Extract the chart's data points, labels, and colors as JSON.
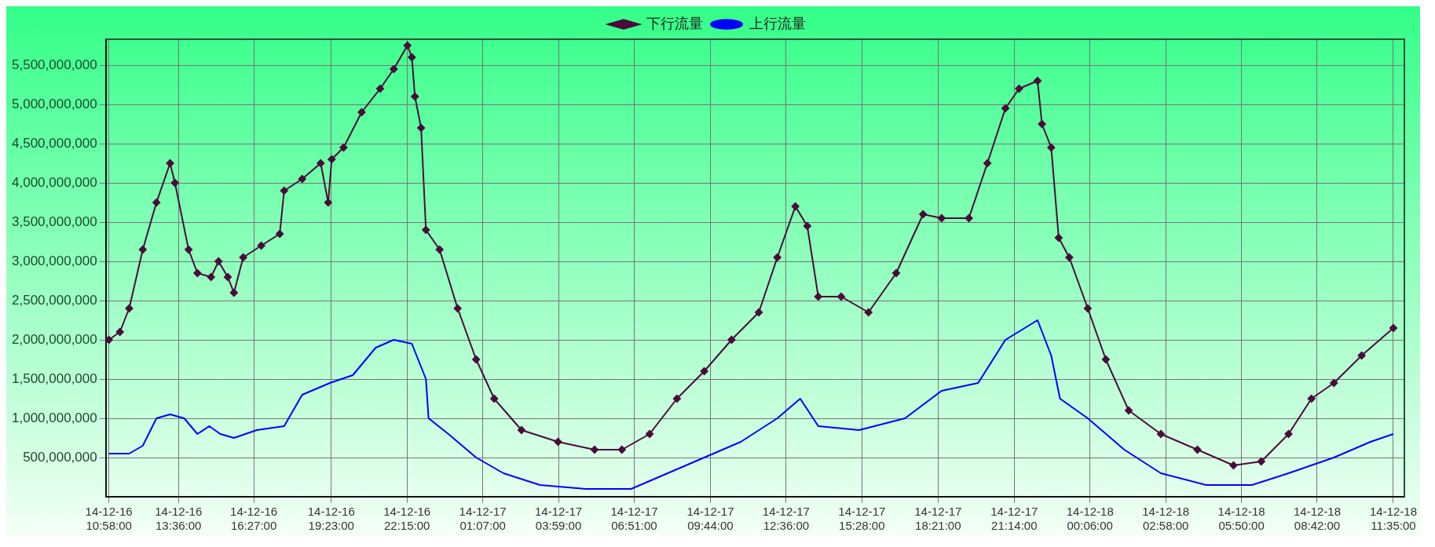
{
  "chart_data": {
    "type": "line",
    "xlim": [
      "--12-16T10:51",
      "--12-18T12:00"
    ],
    "xticks": [
      {
        "value": "--12-16T10:58",
        "label": "14-12-16 10:58:00"
      },
      {
        "value": "--12-16T13:36",
        "label": "14-12-16 13:36:00"
      },
      {
        "value": "--12-16T16:27",
        "label": "14-12-16 16:27:00"
      },
      {
        "value": "--12-16T19:23",
        "label": "14-12-16 19:23:00"
      },
      {
        "value": "--12-16T22:15",
        "label": "14-12-16 22:15:00"
      },
      {
        "value": "--12-17T01:07",
        "label": "14-12-17 01:07:00"
      },
      {
        "value": "--12-17T03:59",
        "label": "14-12-17 03:59:00"
      },
      {
        "value": "--12-17T06:51",
        "label": "14-12-17 06:51:00"
      },
      {
        "value": "--12-17T09:44",
        "label": "14-12-17 09:44:00"
      },
      {
        "value": "--12-17T12:36",
        "label": "14-12-17 12:36:00"
      },
      {
        "value": "--12-17T15:28",
        "label": "14-12-17 15:28:00"
      },
      {
        "value": "--12-17T18:21",
        "label": "14-12-17 18:21:00"
      },
      {
        "value": "--12-17T21:14",
        "label": "14-12-17 21:14:00"
      },
      {
        "value": "--12-18T00:06",
        "label": "14-12-18 00:06:00"
      },
      {
        "value": "--12-18T02:58",
        "label": "14-12-18 02:58:00"
      },
      {
        "value": "--12-18T05:50",
        "label": "14-12-18 05:50:00"
      },
      {
        "value": "--12-18T08:42",
        "label": "14-12-18 08:42:00"
      },
      {
        "value": "--12-18T11:35",
        "label": "14-12-18 11:35:00"
      }
    ],
    "ylim": [
      0,
      5830000000
    ],
    "yticks": [
      {
        "value": 500000000,
        "label": "500,000,000"
      },
      {
        "value": 1000000000,
        "label": "1,000,000,000"
      },
      {
        "value": 1500000000,
        "label": "1,500,000,000"
      },
      {
        "value": 2000000000,
        "label": "2,000,000,000"
      },
      {
        "value": 2500000000,
        "label": "2,500,000,000"
      },
      {
        "value": 3000000000,
        "label": "3,000,000,000"
      },
      {
        "value": 3500000000,
        "label": "3,500,000,000"
      },
      {
        "value": 4000000000,
        "label": "4,000,000,000"
      },
      {
        "value": 4500000000,
        "label": "4,500,000,000"
      },
      {
        "value": 5000000000,
        "label": "5,000,000,000"
      },
      {
        "value": 5500000000,
        "label": "5,500,000,000"
      }
    ],
    "grid": true,
    "legend": "top",
    "line_style": "solid",
    "series": [
      {
        "name": "下行流量",
        "color": "#4a0d3a",
        "marker": "diamond",
        "x": [
          "--12-16T10:58",
          "--12-16T11:23",
          "--12-16T11:44",
          "--12-16T12:15",
          "--12-16T12:46",
          "--12-16T13:17",
          "--12-16T13:28",
          "--12-16T13:59",
          "--12-16T14:19",
          "--12-16T14:50",
          "--12-16T15:07",
          "--12-16T15:28",
          "--12-16T15:42",
          "--12-16T16:03",
          "--12-16T16:44",
          "--12-16T17:26",
          "--12-16T17:36",
          "--12-16T18:17",
          "--12-16T18:59",
          "--12-16T19:16",
          "--12-16T19:24",
          "--12-16T19:51",
          "--12-16T20:32",
          "--12-16T21:14",
          "--12-16T21:45",
          "--12-16T22:16",
          "--12-16T22:26",
          "--12-16T22:33",
          "--12-16T22:47",
          "--12-16T22:58",
          "--12-16T23:29",
          "--12-17T00:10",
          "--12-17T00:52",
          "--12-17T01:33",
          "--12-17T02:35",
          "--12-17T03:58",
          "--12-17T05:21",
          "--12-17T06:23",
          "--12-17T07:26",
          "--12-17T08:28",
          "--12-17T09:30",
          "--12-17T10:32",
          "--12-17T11:34",
          "--12-17T12:16",
          "--12-17T12:57",
          "--12-17T13:24",
          "--12-17T13:49",
          "--12-17T14:41",
          "--12-17T15:43",
          "--12-17T16:46",
          "--12-17T17:47",
          "--12-17T18:29",
          "--12-17T19:31",
          "--12-17T20:13",
          "--12-17T20:54",
          "--12-17T21:25",
          "--12-17T22:07",
          "--12-17T22:17",
          "--12-17T22:38",
          "--12-17T22:55",
          "--12-17T23:19",
          "--12-18T00:01",
          "--12-18T00:42",
          "--12-18T01:34",
          "--12-18T02:47",
          "--12-18T04:10",
          "--12-18T05:32",
          "--12-18T06:35",
          "--12-18T07:37",
          "--12-18T08:29",
          "--12-18T09:20",
          "--12-18T10:23",
          "--12-18T11:35"
        ],
        "values": [
          2000000000,
          2100000000,
          2400000000,
          3150000000,
          3750000000,
          4250000000,
          4000000000,
          3150000000,
          2850000000,
          2800000000,
          3000000000,
          2800000000,
          2600000000,
          3050000000,
          3200000000,
          3350000000,
          3900000000,
          4050000000,
          4250000000,
          3750000000,
          4300000000,
          4450000000,
          4900000000,
          5200000000,
          5450000000,
          5750000000,
          5600000000,
          5100000000,
          4700000000,
          3400000000,
          3150000000,
          2400000000,
          1750000000,
          1250000000,
          850000000,
          700000000,
          600000000,
          600000000,
          800000000,
          1250000000,
          1600000000,
          2000000000,
          2350000000,
          3050000000,
          3700000000,
          3450000000,
          2550000000,
          2550000000,
          2350000000,
          2850000000,
          3600000000,
          3550000000,
          3550000000,
          4250000000,
          4950000000,
          5200000000,
          5300000000,
          4750000000,
          4450000000,
          3300000000,
          3050000000,
          2400000000,
          1750000000,
          1100000000,
          800000000,
          600000000,
          400000000,
          450000000,
          800000000,
          1250000000,
          1450000000,
          1800000000,
          2150000000
        ]
      },
      {
        "name": "上行流量",
        "color": "#0000ff",
        "x": [
          "--12-16T10:58",
          "--12-16T11:44",
          "--12-16T12:15",
          "--12-16T12:46",
          "--12-16T13:17",
          "--12-16T13:49",
          "--12-16T14:19",
          "--12-16T14:46",
          "--12-16T15:11",
          "--12-16T15:42",
          "--12-16T16:34",
          "--12-16T17:36",
          "--12-16T18:17",
          "--12-16T19:20",
          "--12-16T20:12",
          "--12-16T21:04",
          "--12-16T21:45",
          "--12-16T22:26",
          "--12-16T22:58",
          "--12-16T23:04",
          "--12-16T23:49",
          "--12-17T00:52",
          "--12-17T01:54",
          "--12-17T03:17",
          "--12-17T05:01",
          "--12-17T06:44",
          "--12-17T08:07",
          "--12-17T09:30",
          "--12-17T10:53",
          "--12-17T12:16",
          "--12-17T13:08",
          "--12-17T13:49",
          "--12-17T15:22",
          "--12-17T17:06",
          "--12-17T18:29",
          "--12-17T19:52",
          "--12-17T20:54",
          "--12-17T22:07",
          "--12-17T22:38",
          "--12-17T22:58",
          "--12-18T00:01",
          "--12-18T01:24",
          "--12-18T02:47",
          "--12-18T04:30",
          "--12-18T06:14",
          "--12-18T07:37",
          "--12-18T09:20",
          "--12-18T10:43",
          "--12-18T11:35"
        ],
        "values": [
          550000000,
          550000000,
          650000000,
          1000000000,
          1050000000,
          1000000000,
          800000000,
          900000000,
          800000000,
          750000000,
          850000000,
          900000000,
          1300000000,
          1450000000,
          1550000000,
          1900000000,
          2000000000,
          1950000000,
          1500000000,
          1000000000,
          800000000,
          500000000,
          300000000,
          150000000,
          100000000,
          100000000,
          300000000,
          500000000,
          700000000,
          1000000000,
          1250000000,
          900000000,
          850000000,
          1000000000,
          1350000000,
          1450000000,
          2000000000,
          2250000000,
          1800000000,
          1250000000,
          1000000000,
          600000000,
          300000000,
          150000000,
          150000000,
          300000000,
          500000000,
          700000000,
          800000000
        ]
      }
    ]
  }
}
